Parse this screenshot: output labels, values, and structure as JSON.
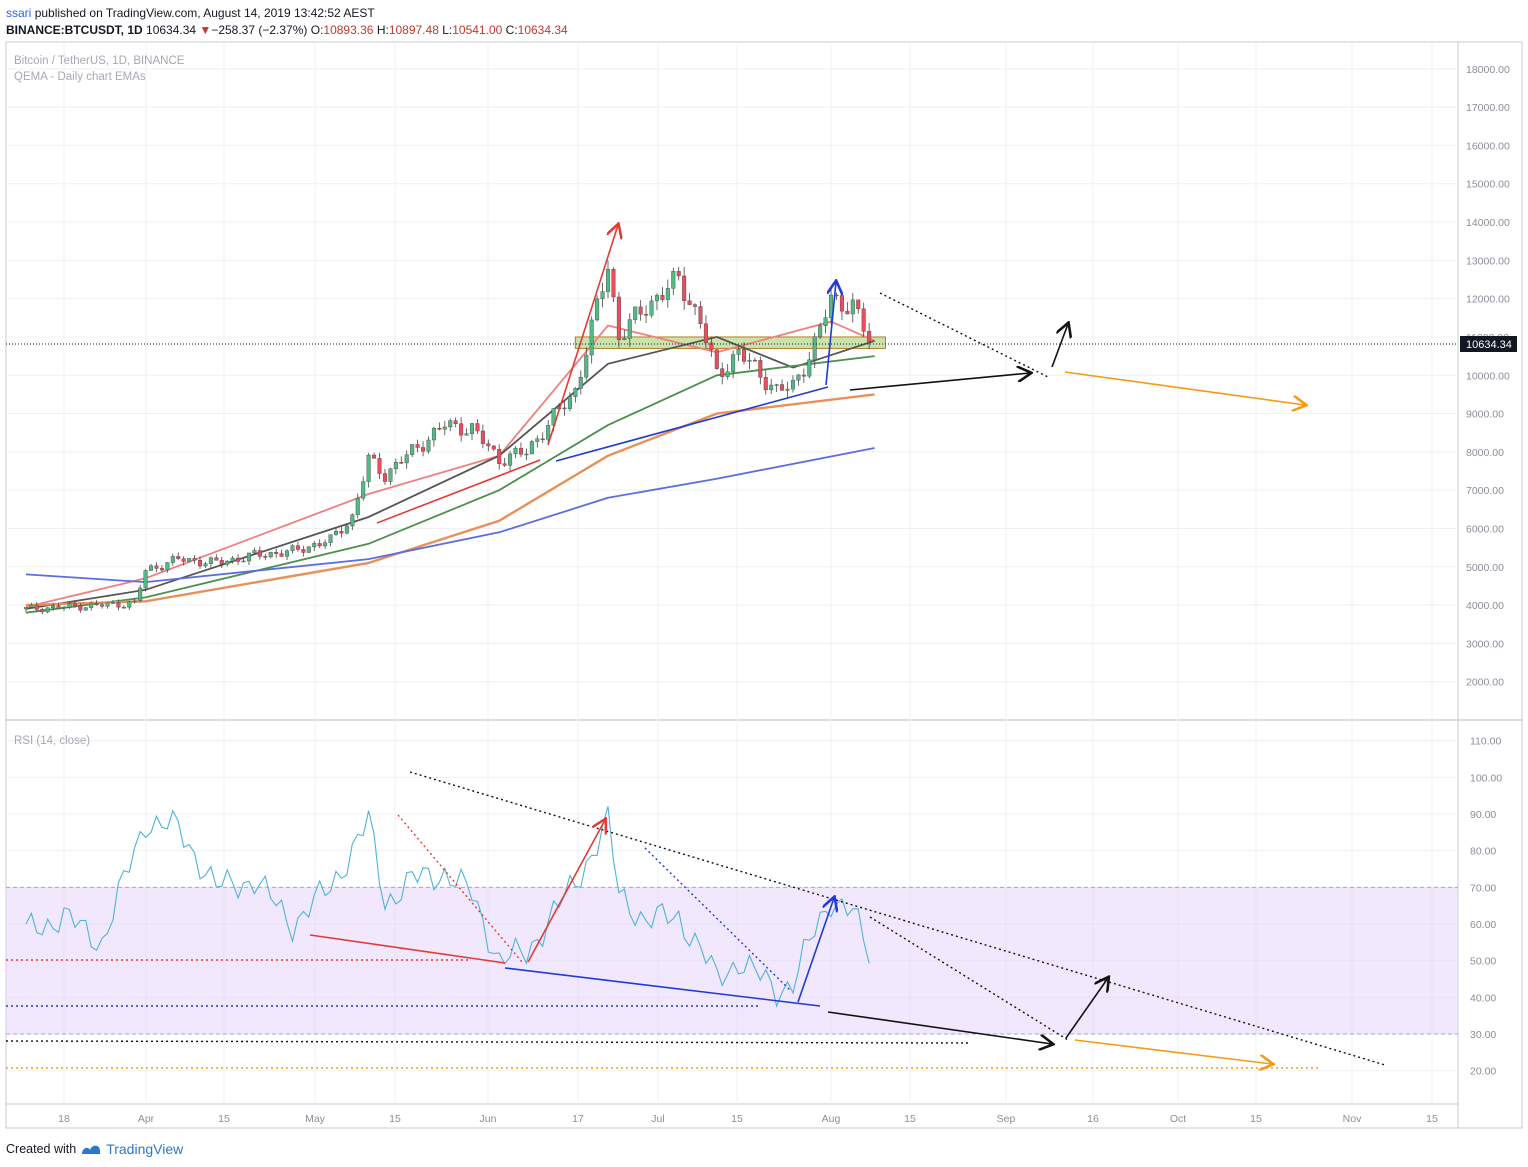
{
  "header": {
    "publisher": "ssari",
    "published_text": "published on TradingView.com, August 14, 2019 13:42:52 AEST",
    "symbol": "BINANCE:BTCUSDT, 1D",
    "last": "10634.34",
    "change_arrow": "▼",
    "change": "−258.37 (−2.37%)",
    "o_label": "O:",
    "o": "10893.36",
    "h_label": "H:",
    "h": "10897.48",
    "l_label": "L:",
    "l": "10541.00",
    "c_label": "C:",
    "c": "10634.34"
  },
  "chart_data": [
    {
      "type": "candlestick",
      "title": "Bitcoin / TetherUS, 1D, BINANCE",
      "subtitle": "QEMA - Daily chart EMAs",
      "y_ticks": [
        "18000.00",
        "17000.00",
        "16000.00",
        "15000.00",
        "14000.00",
        "13000.00",
        "12000.00",
        "11000.00",
        "10000.00",
        "9000.00",
        "8000.00",
        "7000.00",
        "6000.00",
        "5000.00",
        "4000.00",
        "3000.00",
        "2000.00"
      ],
      "last_price_label": "10634.34",
      "ylim": [
        1000,
        18700
      ],
      "x_ticks": [
        "18",
        "Apr",
        "15",
        "May",
        "15",
        "Jun",
        "17",
        "Jul",
        "15",
        "Aug",
        "15",
        "Sep",
        "16",
        "Oct",
        "15",
        "Nov",
        "15"
      ],
      "close_points": [
        [
          "2019-03-11",
          3900
        ],
        [
          "2019-03-18",
          3950
        ],
        [
          "2019-03-25",
          4000
        ],
        [
          "2019-03-31",
          4050
        ],
        [
          "2019-04-02",
          4900
        ],
        [
          "2019-04-08",
          5200
        ],
        [
          "2019-04-15",
          5100
        ],
        [
          "2019-04-22",
          5300
        ],
        [
          "2019-04-29",
          5400
        ],
        [
          "2019-05-06",
          5700
        ],
        [
          "2019-05-10",
          6300
        ],
        [
          "2019-05-13",
          7800
        ],
        [
          "2019-05-16",
          7400
        ],
        [
          "2019-05-20",
          7900
        ],
        [
          "2019-05-27",
          8700
        ],
        [
          "2019-06-01",
          8600
        ],
        [
          "2019-06-06",
          7800
        ],
        [
          "2019-06-11",
          8000
        ],
        [
          "2019-06-16",
          8900
        ],
        [
          "2019-06-20",
          9600
        ],
        [
          "2019-06-23",
          11200
        ],
        [
          "2019-06-26",
          12900
        ],
        [
          "2019-06-28",
          11000
        ],
        [
          "2019-07-03",
          11800
        ],
        [
          "2019-07-09",
          12500
        ],
        [
          "2019-07-13",
          11400
        ],
        [
          "2019-07-16",
          10000
        ],
        [
          "2019-07-20",
          10600
        ],
        [
          "2019-07-27",
          9600
        ],
        [
          "2019-07-30",
          9700
        ],
        [
          "2019-08-03",
          10800
        ],
        [
          "2019-08-06",
          12000
        ],
        [
          "2019-08-10",
          11800
        ],
        [
          "2019-08-14",
          10634
        ]
      ],
      "horizontal_zone": {
        "low": 10700,
        "high": 11000
      },
      "emas": [
        {
          "color": "#f08080",
          "values": [
            [
              "2019-03-11",
              3950
            ],
            [
              "2019-04-02",
              4700
            ],
            [
              "2019-05-13",
              6900
            ],
            [
              "2019-06-06",
              7900
            ],
            [
              "2019-06-26",
              11300
            ],
            [
              "2019-07-16",
              10600
            ],
            [
              "2019-08-06",
              11400
            ],
            [
              "2019-08-14",
              10900
            ]
          ]
        },
        {
          "color": "#555555",
          "values": [
            [
              "2019-03-11",
              3900
            ],
            [
              "2019-04-02",
              4400
            ],
            [
              "2019-05-13",
              6300
            ],
            [
              "2019-06-06",
              7900
            ],
            [
              "2019-06-26",
              10300
            ],
            [
              "2019-07-16",
              11000
            ],
            [
              "2019-07-30",
              10200
            ],
            [
              "2019-08-14",
              10900
            ]
          ]
        },
        {
          "color": "#4d8f4d",
          "values": [
            [
              "2019-03-11",
              3800
            ],
            [
              "2019-04-02",
              4200
            ],
            [
              "2019-05-13",
              5600
            ],
            [
              "2019-06-06",
              7000
            ],
            [
              "2019-06-26",
              8700
            ],
            [
              "2019-07-16",
              10000
            ],
            [
              "2019-08-14",
              10500
            ]
          ]
        },
        {
          "color": "#e8905a",
          "values": [
            [
              "2019-03-11",
              4000
            ],
            [
              "2019-04-02",
              4100
            ],
            [
              "2019-05-13",
              5100
            ],
            [
              "2019-06-06",
              6200
            ],
            [
              "2019-06-26",
              7900
            ],
            [
              "2019-07-16",
              9000
            ],
            [
              "2019-08-14",
              9500
            ]
          ]
        },
        {
          "color": "#5b6ee1",
          "values": [
            [
              "2019-03-11",
              4800
            ],
            [
              "2019-04-02",
              4600
            ],
            [
              "2019-05-13",
              5200
            ],
            [
              "2019-06-06",
              5900
            ],
            [
              "2019-06-26",
              6800
            ],
            [
              "2019-07-16",
              7300
            ],
            [
              "2019-08-14",
              8100
            ]
          ]
        }
      ]
    },
    {
      "type": "line",
      "title": "RSI (14, close)",
      "y_ticks": [
        "110.00",
        "100.00",
        "90.00",
        "80.00",
        "70.00",
        "60.00",
        "50.00",
        "40.00",
        "30.00",
        "20.00"
      ],
      "ylim": [
        12,
        114
      ],
      "band": [
        30,
        70
      ],
      "values": [
        [
          "2019-03-11",
          58
        ],
        [
          "2019-03-18",
          62
        ],
        [
          "2019-03-25",
          55
        ],
        [
          "2019-04-02",
          88
        ],
        [
          "2019-04-08",
          86
        ],
        [
          "2019-04-15",
          70
        ],
        [
          "2019-04-22",
          72
        ],
        [
          "2019-04-29",
          60
        ],
        [
          "2019-05-06",
          70
        ],
        [
          "2019-05-13",
          88
        ],
        [
          "2019-05-16",
          66
        ],
        [
          "2019-05-21",
          72
        ],
        [
          "2019-05-27",
          74
        ],
        [
          "2019-06-01",
          68
        ],
        [
          "2019-06-06",
          50
        ],
        [
          "2019-06-11",
          52
        ],
        [
          "2019-06-16",
          63
        ],
        [
          "2019-06-20",
          71
        ],
        [
          "2019-06-26",
          88
        ],
        [
          "2019-06-28",
          68
        ],
        [
          "2019-07-03",
          61
        ],
        [
          "2019-07-09",
          62
        ],
        [
          "2019-07-13",
          53
        ],
        [
          "2019-07-16",
          45
        ],
        [
          "2019-07-20",
          50
        ],
        [
          "2019-07-27",
          42
        ],
        [
          "2019-07-30",
          44
        ],
        [
          "2019-08-03",
          58
        ],
        [
          "2019-08-06",
          67
        ],
        [
          "2019-08-10",
          63
        ],
        [
          "2019-08-14",
          48
        ]
      ]
    }
  ],
  "footer": {
    "created_with": "Created with",
    "brand": "TradingView"
  }
}
